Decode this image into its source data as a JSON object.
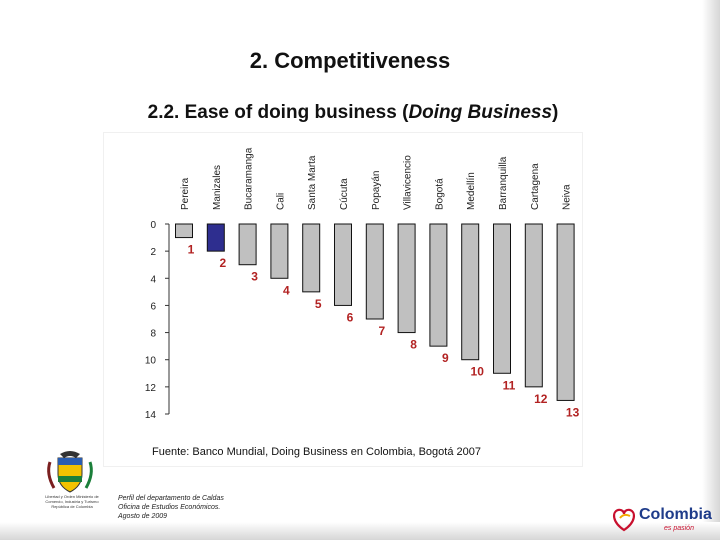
{
  "slide": {
    "title": "2. Competitiveness",
    "subtitle": "2.2. Ease of doing business (Doing Business)",
    "source": "Fuente: Banco Mundial, Doing Business en Colombia, Bogotá 2007",
    "crest_caption": "Libertad y Orden Ministerio de Comercio, Industria y Turismo República de Colombia",
    "footer_note": [
      "Perfil del departamento de Caldas",
      "Oficina de Estudios Económicos.",
      "Agosto de 2009"
    ],
    "brand": {
      "name": "Colombia",
      "tagline": "es pasión"
    },
    "colors": {
      "bar": "#c0c0c0",
      "highlight": "#2e2e8f",
      "label": "#b22222",
      "axis": "#333333",
      "brand": "#1f3c8a",
      "brand_heart": "#c8102e"
    }
  },
  "chart_data": {
    "type": "bar",
    "categories": [
      "Pereira",
      "Manizales",
      "Bucaramanga",
      "Cali",
      "Santa Marta",
      "Cúcuta",
      "Popayán",
      "Villavicencio",
      "Bogotá",
      "Medellín",
      "Barranquilla",
      "Cartagena",
      "Neiva"
    ],
    "values": [
      1,
      2,
      3,
      4,
      5,
      6,
      7,
      8,
      9,
      10,
      11,
      12,
      13
    ],
    "data_labels": [
      "1",
      "2",
      "3",
      "4",
      "5",
      "6",
      "7",
      "8",
      "9",
      "10",
      "11",
      "12",
      "13"
    ],
    "highlight_category": "Manizales",
    "y_ticks": [
      "0",
      "2",
      "4",
      "6",
      "8",
      "10",
      "12",
      "14"
    ],
    "ylim": [
      0,
      14
    ],
    "y_axis_inverted": true,
    "title": "",
    "xlabel": "",
    "ylabel": "",
    "grid": false,
    "legend": "none"
  }
}
